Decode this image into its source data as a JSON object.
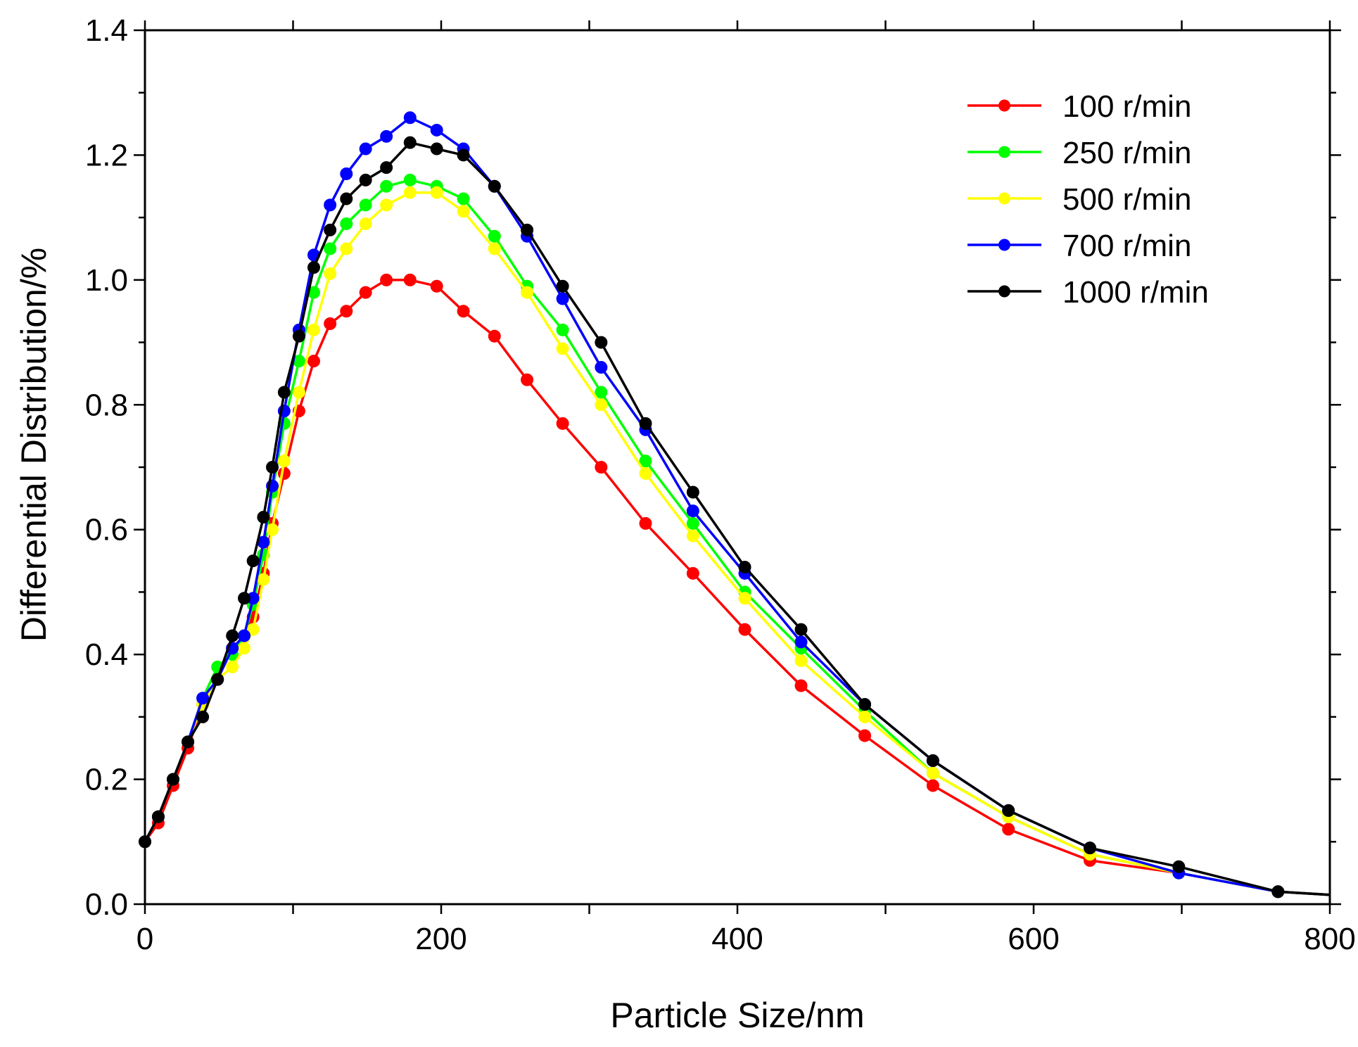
{
  "chart_data": {
    "type": "line",
    "title": "",
    "xlabel": "Particle Size/nm",
    "ylabel": "Differential Distribution/%",
    "xlim": [
      0,
      800
    ],
    "ylim": [
      0,
      1.4
    ],
    "xticks": [
      0,
      200,
      400,
      600,
      800
    ],
    "xtick_labels": [
      "0",
      "200",
      "400",
      "600",
      "800"
    ],
    "yticks": [
      0,
      0.2,
      0.4,
      0.6,
      0.8,
      1.0,
      1.2,
      1.4
    ],
    "ytick_labels": [
      "0.0",
      "0.2",
      "0.4",
      "0.6",
      "0.8",
      "1.0",
      "1.2",
      "1.4"
    ],
    "grid": false,
    "legend_position": "top-right",
    "series": [
      {
        "name": "100 r/min",
        "color": "#ff0000",
        "x": [
          0,
          9,
          19,
          29,
          39,
          49,
          59,
          67,
          73,
          80,
          86,
          94,
          104,
          114,
          125,
          136,
          149,
          163,
          179,
          197,
          215,
          236,
          258,
          282,
          308,
          338,
          370,
          405,
          443,
          486,
          532,
          583,
          638,
          698,
          765,
          800
        ],
        "y": [
          0.1,
          0.13,
          0.19,
          0.25,
          0.32,
          0.36,
          0.41,
          0.43,
          0.46,
          0.53,
          0.61,
          0.69,
          0.79,
          0.87,
          0.93,
          0.95,
          0.98,
          1.0,
          1.0,
          0.99,
          0.95,
          0.91,
          0.84,
          0.77,
          0.7,
          0.61,
          0.53,
          0.44,
          0.35,
          0.27,
          0.19,
          0.12,
          0.07,
          0.05,
          0.02,
          0.015
        ]
      },
      {
        "name": "250 r/min",
        "color": "#00ff00",
        "x": [
          0,
          9,
          19,
          29,
          39,
          49,
          59,
          67,
          73,
          80,
          86,
          94,
          104,
          114,
          125,
          136,
          149,
          163,
          179,
          197,
          215,
          236,
          258,
          282,
          308,
          338,
          370,
          405,
          443,
          486,
          532,
          583,
          638,
          698,
          765,
          800
        ],
        "y": [
          0.1,
          0.14,
          0.2,
          0.26,
          0.33,
          0.38,
          0.4,
          0.43,
          0.48,
          0.56,
          0.66,
          0.77,
          0.87,
          0.98,
          1.05,
          1.09,
          1.12,
          1.15,
          1.16,
          1.15,
          1.13,
          1.07,
          0.99,
          0.92,
          0.82,
          0.71,
          0.61,
          0.5,
          0.41,
          0.31,
          0.21,
          0.14,
          0.08,
          0.05,
          0.02,
          0.015
        ]
      },
      {
        "name": "500 r/min",
        "color": "#ffff00",
        "x": [
          0,
          9,
          19,
          29,
          39,
          49,
          59,
          67,
          73,
          80,
          86,
          94,
          104,
          114,
          125,
          136,
          149,
          163,
          179,
          197,
          215,
          236,
          258,
          282,
          308,
          338,
          370,
          405,
          443,
          486,
          532,
          583,
          638,
          698,
          765,
          800
        ],
        "y": [
          0.1,
          0.14,
          0.2,
          0.26,
          0.32,
          0.36,
          0.38,
          0.41,
          0.44,
          0.52,
          0.6,
          0.71,
          0.82,
          0.92,
          1.01,
          1.05,
          1.09,
          1.12,
          1.14,
          1.14,
          1.11,
          1.05,
          0.98,
          0.89,
          0.8,
          0.69,
          0.59,
          0.49,
          0.39,
          0.3,
          0.21,
          0.14,
          0.08,
          0.05,
          0.02,
          0.015
        ]
      },
      {
        "name": "700 r/min",
        "color": "#0000ff",
        "x": [
          0,
          9,
          19,
          29,
          39,
          49,
          59,
          67,
          73,
          80,
          86,
          94,
          104,
          114,
          125,
          136,
          149,
          163,
          179,
          197,
          215,
          236,
          258,
          282,
          308,
          338,
          370,
          405,
          443,
          486,
          532,
          583,
          638,
          698,
          765,
          800
        ],
        "y": [
          0.1,
          0.14,
          0.2,
          0.26,
          0.33,
          0.36,
          0.41,
          0.43,
          0.49,
          0.58,
          0.67,
          0.79,
          0.92,
          1.04,
          1.12,
          1.17,
          1.21,
          1.23,
          1.26,
          1.24,
          1.21,
          1.15,
          1.07,
          0.97,
          0.86,
          0.76,
          0.63,
          0.53,
          0.42,
          0.32,
          0.23,
          0.15,
          0.09,
          0.05,
          0.02,
          0.015
        ]
      },
      {
        "name": "1000 r/min",
        "color": "#000000",
        "x": [
          0,
          9,
          19,
          29,
          39,
          49,
          59,
          67,
          73,
          80,
          86,
          94,
          104,
          114,
          125,
          136,
          149,
          163,
          179,
          197,
          215,
          236,
          258,
          282,
          308,
          338,
          370,
          405,
          443,
          486,
          532,
          583,
          638,
          698,
          765,
          800
        ],
        "y": [
          0.1,
          0.14,
          0.2,
          0.26,
          0.3,
          0.36,
          0.43,
          0.49,
          0.55,
          0.62,
          0.7,
          0.82,
          0.91,
          1.02,
          1.08,
          1.13,
          1.16,
          1.18,
          1.22,
          1.21,
          1.2,
          1.15,
          1.08,
          0.99,
          0.9,
          0.77,
          0.66,
          0.54,
          0.44,
          0.32,
          0.23,
          0.15,
          0.09,
          0.06,
          0.02,
          0.015
        ]
      }
    ]
  }
}
